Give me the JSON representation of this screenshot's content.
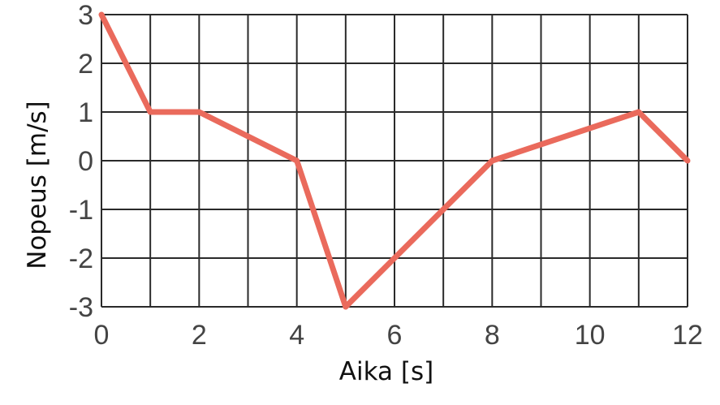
{
  "chart_data": {
    "type": "line",
    "xlabel": "Aika [s]",
    "ylabel": "Nopeus [m/s]",
    "xlim": [
      0,
      12
    ],
    "ylim": [
      -3,
      3
    ],
    "grid": true,
    "x_ticks": [
      0,
      2,
      4,
      6,
      8,
      10,
      12
    ],
    "y_ticks": [
      3,
      2,
      1,
      0,
      -1,
      -2,
      -3
    ],
    "x_tick_labels": [
      "0",
      "2",
      "4",
      "6",
      "8",
      "10",
      "12"
    ],
    "y_tick_labels": [
      "3",
      "2",
      "1",
      "0",
      "-1",
      "-2",
      "-3"
    ],
    "series": [
      {
        "color": "#ea6a5c",
        "x": [
          0,
          1,
          2,
          4,
          5,
          8,
          11,
          12
        ],
        "y": [
          3,
          1,
          1,
          0,
          -3,
          0,
          1,
          0
        ]
      }
    ]
  }
}
